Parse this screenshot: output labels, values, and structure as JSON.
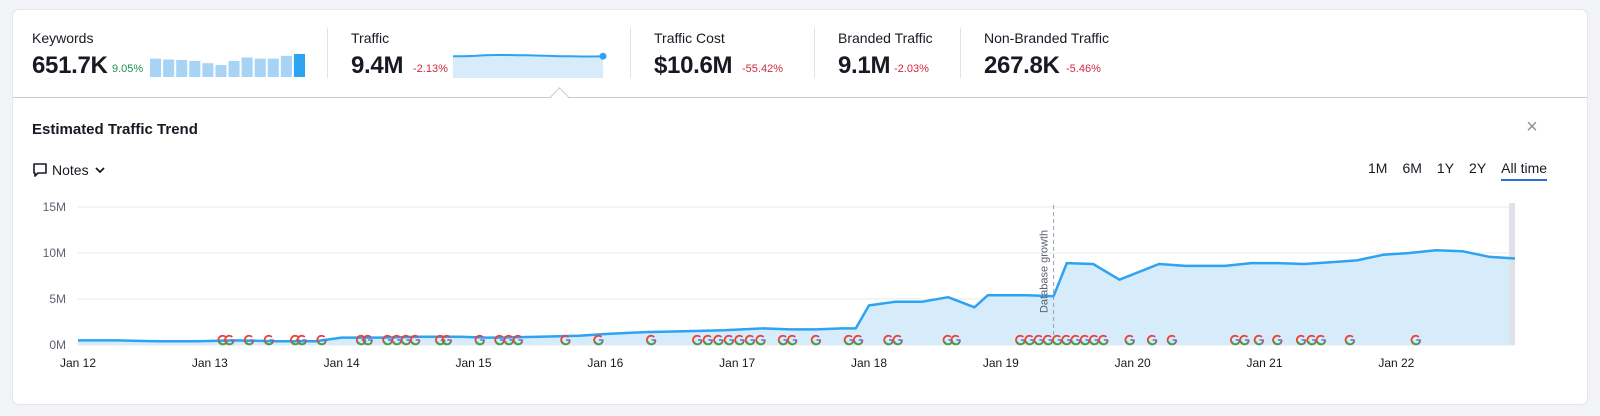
{
  "metrics": {
    "keywords": {
      "label": "Keywords",
      "value": "651.7K",
      "delta": "9.05%"
    },
    "traffic": {
      "label": "Traffic",
      "value": "9.4M",
      "delta": "-2.13%"
    },
    "traffic_cost": {
      "label": "Traffic Cost",
      "value": "$10.6M",
      "delta": "-55.42%"
    },
    "branded": {
      "label": "Branded Traffic",
      "value": "9.1M",
      "delta": "-2.03%"
    },
    "non_branded": {
      "label": "Non-Branded Traffic",
      "value": "267.8K",
      "delta": "-5.46%"
    }
  },
  "trend": {
    "title": "Estimated Traffic Trend",
    "notes_label": "Notes",
    "ranges": [
      "1M",
      "6M",
      "1Y",
      "2Y",
      "All time"
    ],
    "active_range": "All time"
  },
  "colors": {
    "line": "#2ea3f2",
    "area": "#d6ecfb",
    "bars": "#a7d4f5",
    "bar_last": "#2ea3f2",
    "positive": "#1e8f5a",
    "negative": "#d1293d"
  },
  "icons": {
    "notes": "note-bubble-icon",
    "dropdown": "chevron-down-icon",
    "close": "close-icon",
    "google": "google-update-icon"
  },
  "keywords_sparkline": [
    0.8,
    0.76,
    0.74,
    0.7,
    0.6,
    0.52,
    0.7,
    0.85,
    0.8,
    0.8,
    0.92,
    1.0
  ],
  "traffic_sparkline": [
    0.86,
    0.86,
    0.87,
    0.89,
    0.9,
    0.9,
    0.89,
    0.89,
    0.88,
    0.87,
    0.86,
    0.86,
    0.85,
    0.85,
    0.86
  ],
  "chart_data": {
    "type": "area",
    "title": "Estimated Traffic Trend",
    "xlabel": "",
    "ylabel": "",
    "x_ticks": [
      "Jan 12",
      "Jan 13",
      "Jan 14",
      "Jan 15",
      "Jan 16",
      "Jan 17",
      "Jan 18",
      "Jan 19",
      "Jan 20",
      "Jan 21",
      "Jan 22"
    ],
    "y_ticks": [
      "0M",
      "5M",
      "10M",
      "15M"
    ],
    "xlim": [
      2012.0,
      2022.9
    ],
    "ylim": [
      0,
      15
    ],
    "series": [
      {
        "name": "Traffic",
        "x": [
          2012.0,
          2012.3,
          2012.6,
          2012.9,
          2013.2,
          2013.5,
          2013.8,
          2014.0,
          2014.3,
          2014.6,
          2014.9,
          2015.1,
          2015.2,
          2015.5,
          2015.8,
          2016.0,
          2016.3,
          2016.6,
          2016.9,
          2017.2,
          2017.4,
          2017.6,
          2017.8,
          2017.9,
          2018.0,
          2018.2,
          2018.4,
          2018.6,
          2018.8,
          2018.9,
          2019.0,
          2019.2,
          2019.4,
          2019.5,
          2019.7,
          2019.9,
          2020.2,
          2020.4,
          2020.7,
          2020.9,
          2021.1,
          2021.3,
          2021.5,
          2021.7,
          2021.9,
          2022.1,
          2022.3,
          2022.5,
          2022.7,
          2022.9
        ],
        "values": [
          0.5,
          0.5,
          0.4,
          0.4,
          0.5,
          0.4,
          0.4,
          0.8,
          0.8,
          0.9,
          0.9,
          0.8,
          0.8,
          0.9,
          1.0,
          1.2,
          1.4,
          1.5,
          1.6,
          1.8,
          1.7,
          1.7,
          1.8,
          1.8,
          4.3,
          4.7,
          4.7,
          5.2,
          4.1,
          5.4,
          5.4,
          5.4,
          5.3,
          8.9,
          8.8,
          7.1,
          8.8,
          8.6,
          8.6,
          8.9,
          8.9,
          8.8,
          9.0,
          9.2,
          9.8,
          10.0,
          10.3,
          10.2,
          9.6,
          9.4
        ]
      }
    ],
    "annotations": [
      {
        "x": 2019.4,
        "label": "Database growth"
      }
    ],
    "google_updates": [
      2013.1,
      2013.15,
      2013.3,
      2013.45,
      2013.65,
      2013.7,
      2013.85,
      2014.15,
      2014.2,
      2014.35,
      2014.42,
      2014.49,
      2014.56,
      2014.75,
      2014.8,
      2015.05,
      2015.2,
      2015.27,
      2015.34,
      2015.7,
      2015.95,
      2016.35,
      2016.7,
      2016.78,
      2016.86,
      2016.94,
      2017.02,
      2017.1,
      2017.18,
      2017.35,
      2017.42,
      2017.6,
      2017.85,
      2017.92,
      2018.15,
      2018.22,
      2018.6,
      2018.66,
      2019.15,
      2019.22,
      2019.29,
      2019.36,
      2019.43,
      2019.5,
      2019.57,
      2019.64,
      2019.71,
      2019.78,
      2019.98,
      2020.15,
      2020.3,
      2020.78,
      2020.85,
      2020.96,
      2021.1,
      2021.28,
      2021.36,
      2021.43,
      2021.65,
      2022.15
    ]
  }
}
